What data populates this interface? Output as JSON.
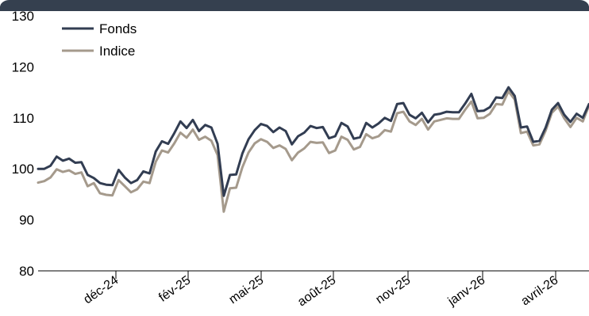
{
  "chart_data": {
    "type": "line",
    "title": "",
    "xlabel": "",
    "ylabel": "",
    "ylim": [
      80,
      130
    ],
    "yticks": [
      80,
      90,
      100,
      110,
      120,
      130
    ],
    "xlabels": [
      "déc-24",
      "fév-25",
      "mai-25",
      "août-25",
      "nov-25",
      "janv-26",
      "avril-26"
    ],
    "legend_position": "top-left",
    "colors": {
      "Fonds": "#323d52",
      "Indice": "#a59a8c",
      "frame": "#35404f"
    },
    "series": [
      {
        "name": "Fonds",
        "values": [
          100.0,
          100.0,
          100.6,
          102.4,
          101.6,
          102.0,
          101.2,
          101.3,
          98.8,
          98.2,
          97.2,
          96.9,
          96.8,
          99.8,
          98.3,
          97.2,
          97.8,
          99.5,
          99.1,
          103.4,
          105.4,
          104.9,
          107.0,
          109.3,
          108.0,
          109.6,
          107.4,
          108.6,
          108.1,
          104.9,
          94.7,
          98.8,
          98.9,
          103.0,
          105.8,
          107.6,
          108.8,
          108.4,
          107.2,
          108.1,
          107.4,
          104.8,
          106.4,
          107.1,
          108.4,
          108.0,
          108.2,
          106.0,
          106.4,
          109.0,
          108.3,
          105.9,
          106.2,
          109.0,
          108.1,
          108.9,
          110.0,
          109.4,
          112.7,
          112.9,
          110.6,
          109.9,
          111.0,
          109.1,
          110.6,
          110.8,
          111.2,
          111.1,
          111.1,
          112.8,
          114.7,
          111.3,
          111.4,
          112.1,
          114.0,
          113.9,
          116.0,
          114.3,
          108.1,
          108.3,
          105.3,
          105.5,
          108.1,
          111.6,
          112.9,
          110.6,
          109.2,
          110.8,
          110.0,
          112.7
        ]
      },
      {
        "name": "Indice",
        "values": [
          97.3,
          97.6,
          98.3,
          99.9,
          99.4,
          99.7,
          99.0,
          99.3,
          96.6,
          97.2,
          95.2,
          94.9,
          94.8,
          97.8,
          96.6,
          95.4,
          96.0,
          97.5,
          97.2,
          101.4,
          103.6,
          103.2,
          105.0,
          107.1,
          106.1,
          107.7,
          105.7,
          106.3,
          105.5,
          102.7,
          91.6,
          96.2,
          96.3,
          100.3,
          103.2,
          105.0,
          105.8,
          105.3,
          104.1,
          104.6,
          103.9,
          101.7,
          103.2,
          104.0,
          105.3,
          105.1,
          105.2,
          103.1,
          103.6,
          106.3,
          105.7,
          103.8,
          104.3,
          106.8,
          106.0,
          106.4,
          107.6,
          107.3,
          110.9,
          111.2,
          109.3,
          108.6,
          109.8,
          107.7,
          109.3,
          109.6,
          109.9,
          109.8,
          109.8,
          111.6,
          113.2,
          109.9,
          110.0,
          110.8,
          112.7,
          112.6,
          115.2,
          113.6,
          107.0,
          107.3,
          104.6,
          104.8,
          107.5,
          111.0,
          112.2,
          109.9,
          108.2,
          110.0,
          109.3,
          112.4
        ]
      }
    ]
  }
}
